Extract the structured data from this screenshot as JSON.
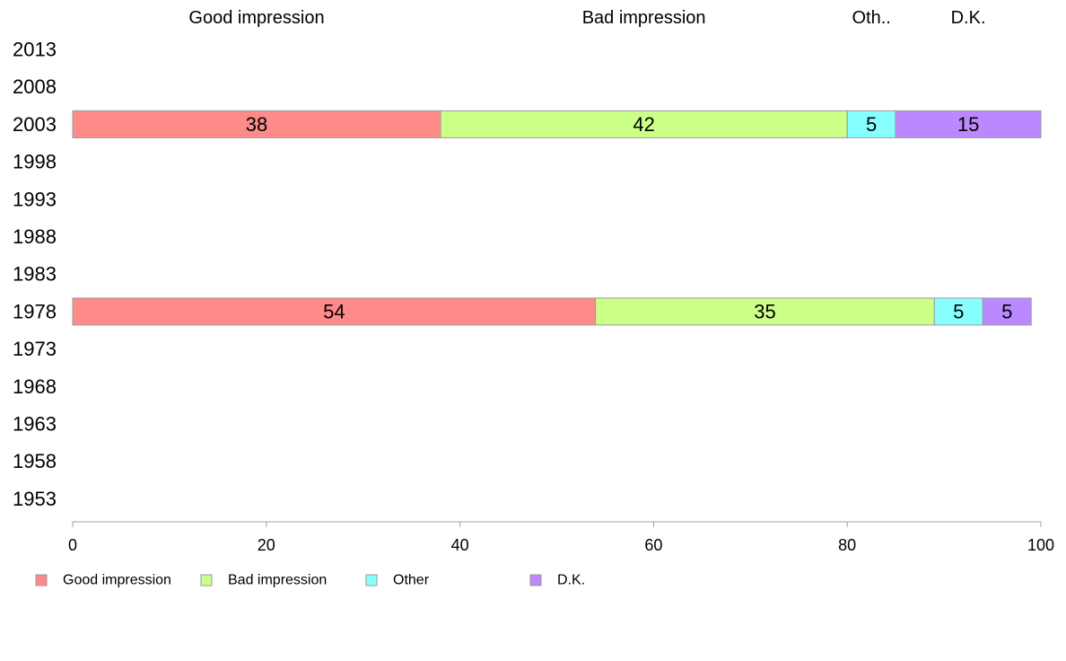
{
  "chart_data": {
    "type": "bar",
    "orientation": "horizontal",
    "stacked": true,
    "title": "",
    "xlabel": "",
    "ylabel": "",
    "xlim": [
      0,
      100
    ],
    "x_ticks": [
      "0",
      "20",
      "40",
      "60",
      "80",
      "100"
    ],
    "categories": [
      "2013",
      "2008",
      "2003",
      "1998",
      "1993",
      "1988",
      "1983",
      "1978",
      "1973",
      "1968",
      "1963",
      "1958",
      "1953"
    ],
    "column_headers": [
      {
        "label": "Good impression",
        "series": 0
      },
      {
        "label": "Bad impression",
        "series": 1
      },
      {
        "label": "Oth..",
        "series": 2
      },
      {
        "label": "D.K.",
        "series": 3
      }
    ],
    "series": [
      {
        "name": "Good impression",
        "color": "#ff8a8a",
        "values": [
          null,
          null,
          38,
          null,
          null,
          null,
          null,
          54,
          null,
          null,
          null,
          null,
          null
        ]
      },
      {
        "name": "Bad impression",
        "color": "#ccff88",
        "values": [
          null,
          null,
          42,
          null,
          null,
          null,
          null,
          35,
          null,
          null,
          null,
          null,
          null
        ]
      },
      {
        "name": "Other",
        "color": "#88ffff",
        "values": [
          null,
          null,
          5,
          null,
          null,
          null,
          null,
          5,
          null,
          null,
          null,
          null,
          null
        ]
      },
      {
        "name": "D.K.",
        "color": "#bb88ff",
        "values": [
          null,
          null,
          15,
          null,
          null,
          null,
          null,
          5,
          null,
          null,
          null,
          null,
          null
        ]
      }
    ],
    "legend": {
      "position": "bottom-left",
      "items": [
        "Good impression",
        "Bad impression",
        "Other",
        "D.K."
      ]
    },
    "grid": false
  }
}
